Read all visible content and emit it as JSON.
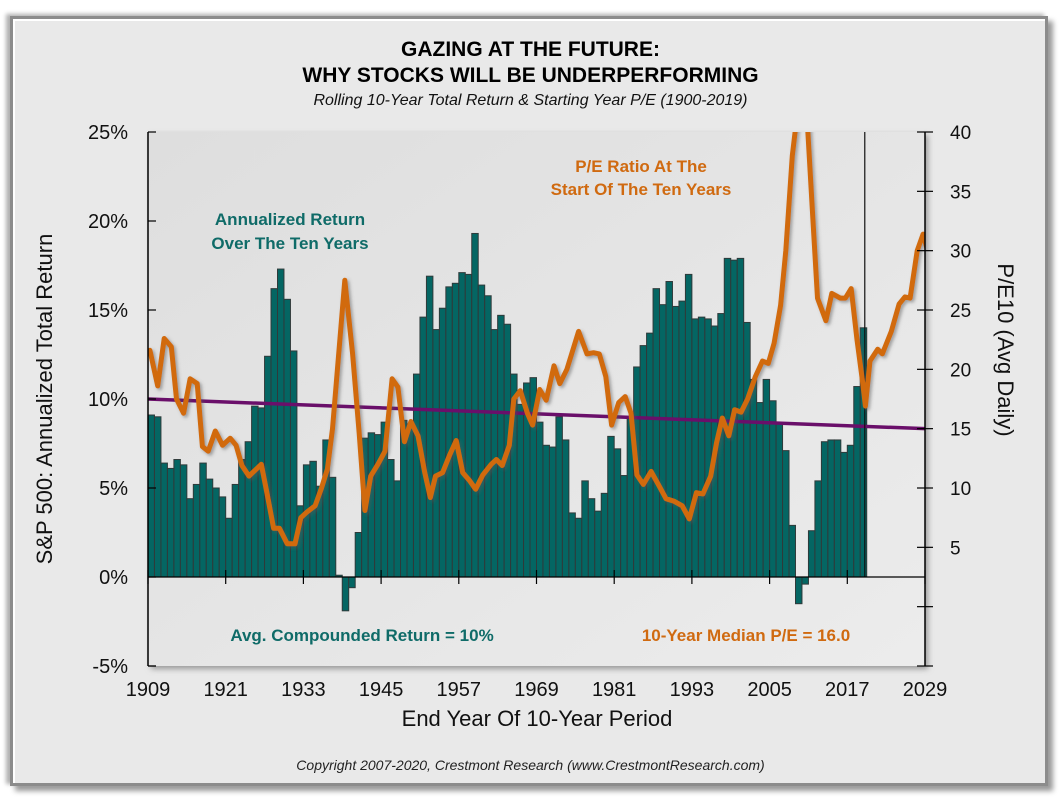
{
  "header": {
    "title_line1": "GAZING AT THE FUTURE:",
    "title_line2": "WHY STOCKS WILL BE UNDERPERFORMING",
    "subtitle": "Rolling 10-Year Total Return & Starting Year P/E (1900-2019)"
  },
  "footer": {
    "copyright": "Copyright 2007-2020, Crestmont Research (www.CrestmontResearch.com)"
  },
  "colors": {
    "bar_fill": "#046663",
    "bar_edge": "#2f3a3a",
    "pe_line": "#d16a0c",
    "median_line": "#6a0f6a",
    "teal_text": "#0f6b68",
    "orange_text": "#d06a10",
    "plot_bg": "#e3e3e3"
  },
  "chart_data": {
    "type": "bar+line",
    "title": "GAZING AT THE FUTURE: WHY STOCKS WILL BE UNDERPERFORMING",
    "subtitle": "Rolling 10-Year Total Return & Starting Year P/E (1900-2019)",
    "xlabel": "End Year Of 10-Year Period",
    "ylabel": "S&P 500: Annualized Total Return",
    "y2label": "P/E10 (Avg Daily)",
    "xlim": [
      1909,
      2029
    ],
    "ylim": [
      -5,
      25
    ],
    "y2lim": [
      -5,
      40
    ],
    "x_ticks": [
      "1909",
      "1921",
      "1933",
      "1945",
      "1957",
      "1969",
      "1981",
      "1993",
      "2005",
      "2017",
      "2029"
    ],
    "y_ticks": [
      "-5%",
      "0%",
      "5%",
      "10%",
      "15%",
      "20%",
      "25%"
    ],
    "y2_ticks": [
      "5",
      "10",
      "15",
      "20",
      "25",
      "30",
      "35",
      "40"
    ],
    "grid": false,
    "annotations": {
      "bars_label_line1": "Annualized Return",
      "bars_label_line2": "Over The Ten Years",
      "pe_label_line1": "P/E Ratio At The",
      "pe_label_line2": "Start Of The Ten Years",
      "avg_return_note": "Avg. Compounded Return = 10%",
      "median_pe_note": "10-Year Median P/E = 16.0"
    },
    "returns_series": {
      "name": "Annualized Return Over The Ten Years (%)",
      "start_year": 1909,
      "values": [
        9.1,
        9.0,
        6.4,
        6.1,
        6.6,
        6.3,
        4.4,
        5.2,
        6.4,
        5.5,
        5.0,
        4.5,
        3.3,
        5.2,
        6.6,
        7.6,
        9.6,
        9.5,
        12.4,
        16.2,
        17.3,
        15.6,
        12.7,
        4.0,
        6.3,
        6.5,
        5.1,
        7.7,
        5.6,
        0.1,
        -1.9,
        -0.6,
        2.5,
        7.8,
        8.1,
        8.0,
        8.7,
        6.6,
        5.4,
        8.8,
        8.4,
        11.4,
        14.6,
        16.9,
        13.9,
        15.1,
        16.3,
        16.5,
        17.1,
        17.0,
        19.3,
        16.4,
        15.8,
        13.9,
        14.7,
        14.2,
        11.4,
        9.7,
        10.9,
        11.2,
        8.7,
        7.4,
        7.3,
        9.0,
        7.7,
        3.6,
        3.3,
        5.4,
        4.4,
        3.7,
        4.7,
        7.9,
        7.2,
        5.7,
        9.0,
        11.8,
        13.0,
        13.7,
        16.2,
        15.3,
        16.6,
        15.2,
        15.5,
        17.0,
        14.5,
        14.6,
        14.5,
        14.1,
        14.8,
        17.9,
        17.8,
        17.9,
        14.3,
        11.1,
        9.8,
        11.1,
        9.9,
        8.6,
        7.1,
        2.9,
        -1.5,
        -0.4,
        2.6,
        5.4,
        7.6,
        7.7,
        7.7,
        7.0,
        7.4,
        10.7,
        14.0
      ]
    },
    "pe_series": {
      "name": "P/E Ratio At The Start Of The Ten Years (P/E10)",
      "points": [
        [
          1909.3,
          21.6
        ],
        [
          1910.5,
          18.6
        ],
        [
          1911.5,
          22.6
        ],
        [
          1912.6,
          21.9
        ],
        [
          1913.4,
          17.5
        ],
        [
          1914.5,
          16.3
        ],
        [
          1915.5,
          19.2
        ],
        [
          1916.6,
          18.8
        ],
        [
          1917.4,
          13.5
        ],
        [
          1918.3,
          13.1
        ],
        [
          1919.4,
          14.8
        ],
        [
          1920.5,
          13.6
        ],
        [
          1921.7,
          14.2
        ],
        [
          1922.6,
          13.6
        ],
        [
          1923.5,
          11.9
        ],
        [
          1924.6,
          11.0
        ],
        [
          1926.5,
          12.0
        ],
        [
          1927.4,
          9.5
        ],
        [
          1928.4,
          6.6
        ],
        [
          1929.3,
          6.6
        ],
        [
          1930.5,
          5.3
        ],
        [
          1931.7,
          5.3
        ],
        [
          1932.6,
          7.5
        ],
        [
          1933.6,
          8.0
        ],
        [
          1934.8,
          8.5
        ],
        [
          1935.8,
          10.0
        ],
        [
          1936.7,
          11.6
        ],
        [
          1937.5,
          15.0
        ],
        [
          1938.4,
          21.0
        ],
        [
          1939.4,
          27.5
        ],
        [
          1940.6,
          21.3
        ],
        [
          1941.6,
          14.7
        ],
        [
          1942.5,
          8.1
        ],
        [
          1943.4,
          11.0
        ],
        [
          1944.5,
          12.0
        ],
        [
          1945.6,
          13.1
        ],
        [
          1946.7,
          19.2
        ],
        [
          1947.6,
          18.5
        ],
        [
          1948.6,
          13.9
        ],
        [
          1949.6,
          15.6
        ],
        [
          1950.7,
          14.4
        ],
        [
          1951.7,
          11.4
        ],
        [
          1952.6,
          9.2
        ],
        [
          1953.4,
          11.0
        ],
        [
          1954.5,
          11.3
        ],
        [
          1955.6,
          12.8
        ],
        [
          1956.6,
          14.0
        ],
        [
          1957.6,
          11.3
        ],
        [
          1958.7,
          10.6
        ],
        [
          1959.6,
          9.9
        ],
        [
          1960.7,
          11.1
        ],
        [
          1962.0,
          12.0
        ],
        [
          1962.8,
          12.4
        ],
        [
          1963.7,
          11.9
        ],
        [
          1964.8,
          13.6
        ],
        [
          1965.5,
          17.5
        ],
        [
          1966.5,
          18.2
        ],
        [
          1967.6,
          16.3
        ],
        [
          1968.4,
          15.3
        ],
        [
          1969.5,
          18.3
        ],
        [
          1970.5,
          17.4
        ],
        [
          1971.7,
          20.3
        ],
        [
          1972.6,
          18.8
        ],
        [
          1973.7,
          20.0
        ],
        [
          1975.5,
          23.2
        ],
        [
          1976.8,
          21.3
        ],
        [
          1977.8,
          21.4
        ],
        [
          1978.7,
          21.3
        ],
        [
          1979.7,
          19.4
        ],
        [
          1980.6,
          15.3
        ],
        [
          1981.7,
          17.2
        ],
        [
          1982.7,
          17.7
        ],
        [
          1983.6,
          16.3
        ],
        [
          1984.5,
          11.1
        ],
        [
          1985.5,
          10.3
        ],
        [
          1986.7,
          11.4
        ],
        [
          1987.9,
          10.2
        ],
        [
          1989.0,
          9.1
        ],
        [
          1990.2,
          8.9
        ],
        [
          1991.5,
          8.5
        ],
        [
          1992.6,
          7.4
        ],
        [
          1993.7,
          9.6
        ],
        [
          1994.7,
          9.5
        ],
        [
          1995.9,
          11.0
        ],
        [
          1996.8,
          13.8
        ],
        [
          1997.7,
          15.9
        ],
        [
          1998.7,
          14.4
        ],
        [
          1999.6,
          16.6
        ],
        [
          2000.6,
          16.4
        ],
        [
          2001.6,
          17.5
        ],
        [
          2002.8,
          19.4
        ],
        [
          2003.9,
          20.7
        ],
        [
          2004.8,
          20.5
        ],
        [
          2005.7,
          22.2
        ],
        [
          2006.7,
          25.4
        ],
        [
          2007.5,
          30.0
        ],
        [
          2008.5,
          38.0
        ],
        [
          2009.8,
          44.0
        ],
        [
          2010.9,
          40.1
        ],
        [
          2011.6,
          33.5
        ],
        [
          2012.4,
          26.0
        ],
        [
          2013.7,
          24.1
        ],
        [
          2014.6,
          26.4
        ],
        [
          2015.9,
          26.0
        ],
        [
          2016.7,
          26.0
        ],
        [
          2017.6,
          26.8
        ],
        [
          2018.5,
          22.5
        ],
        [
          2019.4,
          18.8
        ],
        [
          2019.8,
          16.9
        ],
        [
          2020.5,
          20.7
        ],
        [
          2021.7,
          21.7
        ],
        [
          2022.4,
          21.3
        ],
        [
          2023.8,
          23.2
        ],
        [
          2025.0,
          25.5
        ],
        [
          2025.9,
          26.1
        ],
        [
          2026.7,
          26.0
        ],
        [
          2027.8,
          30.0
        ],
        [
          2028.7,
          31.4
        ],
        [
          2029.7,
          29.4
        ]
      ]
    },
    "median_pe_line": {
      "name": "10-Year Median P/E",
      "value": 16.0
    },
    "average_return_line": {
      "name": "Avg. Compounded Return",
      "value": 10
    },
    "current_year_marker": 2019.7
  }
}
